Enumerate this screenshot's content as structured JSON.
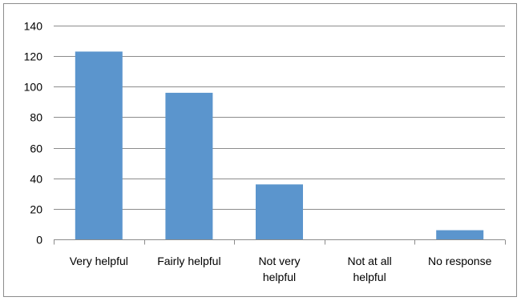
{
  "chart_data": {
    "type": "bar",
    "title": "",
    "xlabel": "",
    "ylabel": "",
    "categories": [
      [
        "Very helpful"
      ],
      [
        "Fairly helpful"
      ],
      [
        "Not very",
        "helpful"
      ],
      [
        "Not at all",
        "helpful"
      ],
      [
        "No response"
      ]
    ],
    "values": [
      123,
      96,
      36,
      0,
      6
    ],
    "ylim": [
      0,
      140
    ],
    "yticks": [
      0,
      20,
      40,
      60,
      80,
      100,
      120,
      140
    ],
    "grid": true,
    "legend": "none",
    "bar_color": "#5b95cd",
    "grid_color": "#8c8c8c"
  }
}
